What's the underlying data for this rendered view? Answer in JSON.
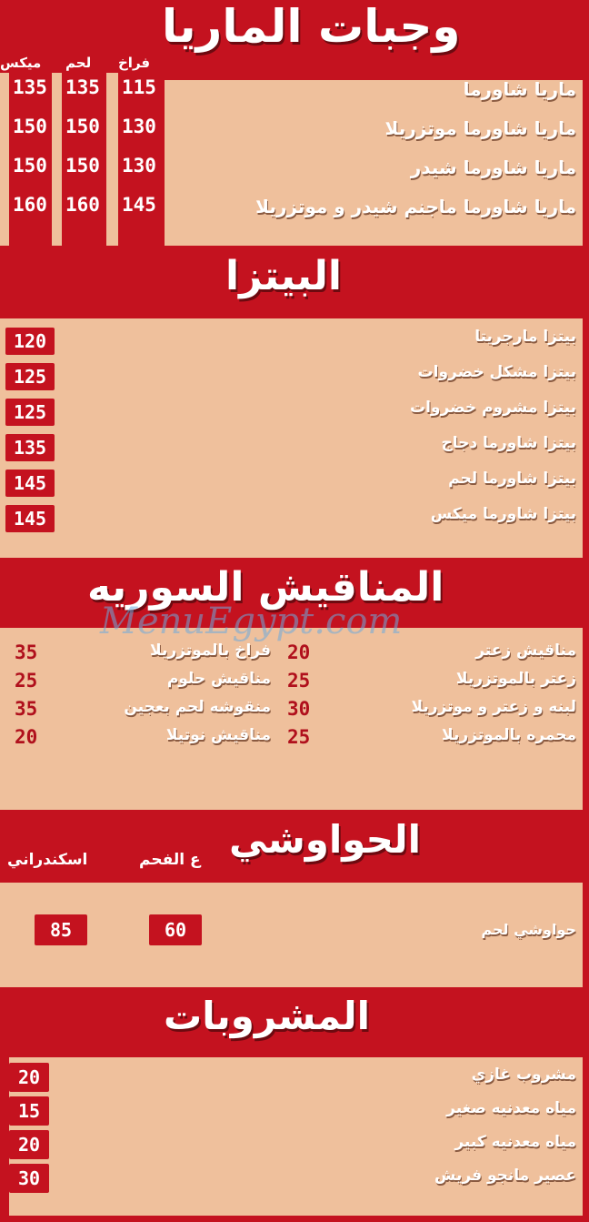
{
  "colors": {
    "background": "#c4121f",
    "panel": "#efc09c",
    "text": "#ffffff"
  },
  "watermark": "MenuEgypt.com",
  "sections": {
    "maria": {
      "title": "وجبات الماريا",
      "columns": [
        "فراخ",
        "لحم",
        "ميكس"
      ],
      "items": [
        {
          "name": "ماريا شاورما",
          "prices": [
            "115",
            "135",
            "135"
          ]
        },
        {
          "name": "ماريا شاورما موتزريلا",
          "prices": [
            "130",
            "150",
            "150"
          ]
        },
        {
          "name": "ماريا شاورما شيدر",
          "prices": [
            "130",
            "150",
            "150"
          ]
        },
        {
          "name": "ماريا شاورما ماجنم شيدر و موتزريلا",
          "prices": [
            "145",
            "160",
            "160"
          ]
        }
      ]
    },
    "pizza": {
      "title": "البيتزا",
      "items": [
        {
          "name": "بيتزا مارجريتا",
          "price": "120"
        },
        {
          "name": "بيتزا مشكل خضروات",
          "price": "125"
        },
        {
          "name": "بيتزا مشروم خضروات",
          "price": "125"
        },
        {
          "name": "بيتزا شاورما دجاج",
          "price": "135"
        },
        {
          "name": "بيتزا شاورما لحم",
          "price": "145"
        },
        {
          "name": "بيتزا شاورما ميكس",
          "price": "145"
        }
      ]
    },
    "manakish": {
      "title": "المناقيش السوريه",
      "right": [
        {
          "name": "مناقيش زعتر",
          "price": "20"
        },
        {
          "name": "زعتر بالموتزريلا",
          "price": "25"
        },
        {
          "name": "لبنه و زعتر و موتزريلا",
          "price": "30"
        },
        {
          "name": "محمره بالموتزريلا",
          "price": "25"
        }
      ],
      "left": [
        {
          "name": "فراخ بالموتزريلا",
          "price": "35"
        },
        {
          "name": "مناقيش حلوم",
          "price": "25"
        },
        {
          "name": "منقوشه لحم بعجين",
          "price": "35"
        },
        {
          "name": "مناقيش نوتيلا",
          "price": "20"
        }
      ]
    },
    "hawawshi": {
      "title": "الحواوشي",
      "columns": [
        "ع الفحم",
        "اسكندراني"
      ],
      "items": [
        {
          "name": "حواوشي لحم",
          "prices": [
            "60",
            "85"
          ]
        }
      ]
    },
    "drinks": {
      "title": "المشروبات",
      "items": [
        {
          "name": "مشروب غازي",
          "price": "20"
        },
        {
          "name": "مياه معدنيه صغير",
          "price": "15"
        },
        {
          "name": "مياه معدنيه كبير",
          "price": "20"
        },
        {
          "name": "عصير مانجو فريش",
          "price": "30"
        }
      ]
    }
  }
}
